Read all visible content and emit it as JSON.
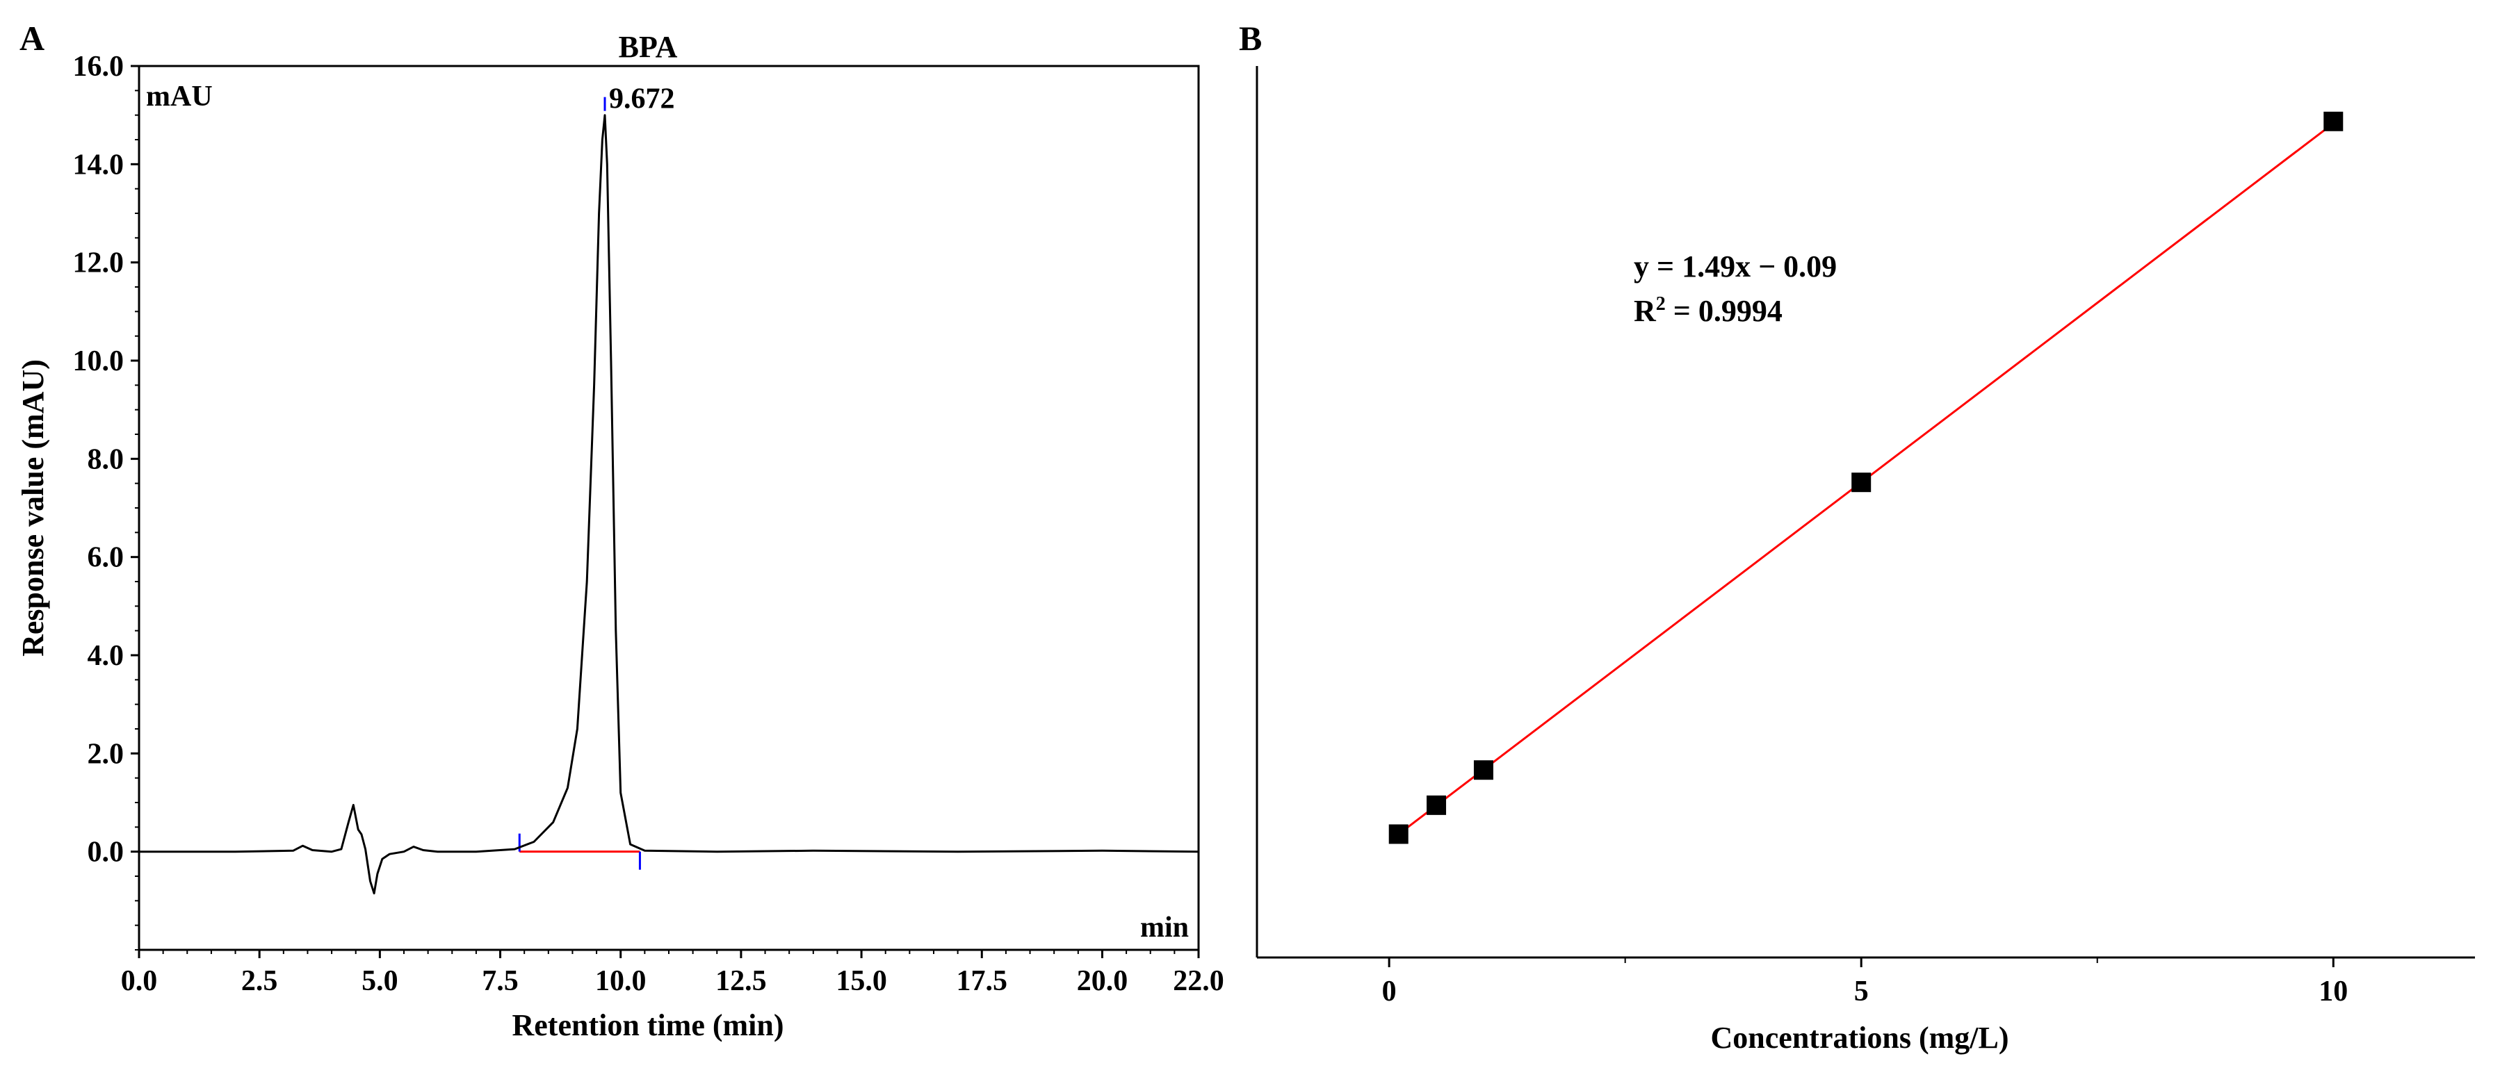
{
  "panels": [
    {
      "label": "A",
      "title": "BPA",
      "y_unit": "mAU",
      "x_unit": "min",
      "peak_label": "9.672"
    },
    {
      "label": "B",
      "equation": "y = 1.49x − 0.09",
      "r2_prefix": "R",
      "r2_sup": "2",
      "r2_value": " = 0.9994"
    }
  ],
  "chart_data": [
    {
      "type": "line",
      "title": "BPA",
      "xlabel": "Retention time (min)",
      "ylabel": "Response value (mAU)",
      "xlim": [
        0,
        22
      ],
      "ylim": [
        -2.0,
        16.0
      ],
      "x_ticks": [
        "0.0",
        "2.5",
        "5.0",
        "7.5",
        "10.0",
        "12.5",
        "15.0",
        "17.5",
        "20.0",
        "22.0"
      ],
      "y_ticks": [
        "0.0",
        "2.0",
        "4.0",
        "6.0",
        "8.0",
        "10.0",
        "12.0",
        "14.0",
        "16.0"
      ],
      "grid": false,
      "series": [
        {
          "x": [
            0.0,
            2.0,
            3.2,
            3.4,
            3.6,
            4.0,
            4.2,
            4.35,
            4.45,
            4.55,
            4.62,
            4.7,
            4.8,
            4.88,
            4.95,
            5.05,
            5.2,
            5.5,
            5.7,
            5.9,
            6.2,
            7.0,
            7.8,
            8.2,
            8.6,
            8.9,
            9.1,
            9.3,
            9.45,
            9.55,
            9.62,
            9.672,
            9.72,
            9.8,
            9.9,
            10.0,
            10.2,
            10.5,
            12.0,
            14.0,
            17.0,
            20.0,
            22.0
          ],
          "y": [
            0.0,
            0.0,
            0.02,
            0.12,
            0.03,
            0.0,
            0.05,
            0.6,
            0.95,
            0.45,
            0.35,
            0.05,
            -0.6,
            -0.85,
            -0.45,
            -0.15,
            -0.05,
            0.0,
            0.1,
            0.03,
            0.0,
            0.0,
            0.05,
            0.2,
            0.6,
            1.3,
            2.5,
            5.5,
            9.5,
            13.0,
            14.5,
            15.0,
            14.0,
            10.0,
            4.5,
            1.2,
            0.15,
            0.02,
            0.0,
            0.02,
            0.0,
            0.02,
            0.0
          ]
        }
      ],
      "annotations": [
        {
          "text": "9.672",
          "x": 9.672,
          "y": 15.0
        }
      ],
      "baseline": {
        "x_start": 7.9,
        "x_end": 10.4,
        "y": 0.0,
        "color": "#ff0000"
      },
      "integration_markers": [
        7.9,
        10.4
      ],
      "line_color": "#000000"
    },
    {
      "type": "scatter",
      "xlabel": "Concentrations (mg/L)",
      "ylabel": "",
      "xlim": [
        -1.4,
        11.5
      ],
      "ylim": [
        -2.5,
        16.0
      ],
      "x_ticks": [
        "0",
        "5",
        "10"
      ],
      "grid": false,
      "points": {
        "x": [
          0.1,
          0.5,
          1.0,
          5.0,
          10.0
        ],
        "y": [
          0.06,
          0.66,
          1.39,
          7.36,
          14.85
        ]
      },
      "fit": {
        "slope": 1.49,
        "intercept": -0.09,
        "r2": 0.9994,
        "x_range": [
          0.1,
          10.0
        ],
        "color": "#ff0000"
      }
    }
  ]
}
